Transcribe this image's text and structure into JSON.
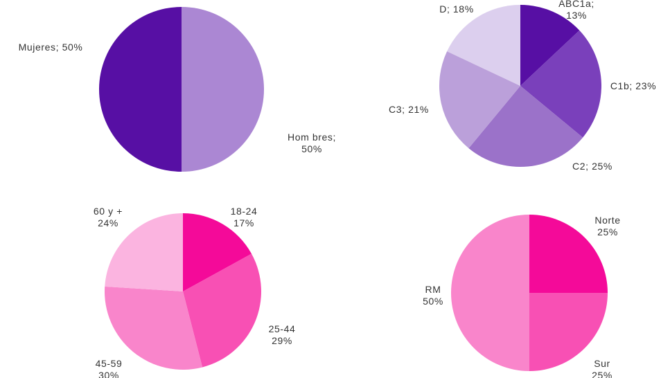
{
  "chart_data": [
    {
      "type": "pie",
      "slices": [
        {
          "label": "Hombres",
          "value": 50,
          "display": [
            "Hom bres;",
            "50%"
          ],
          "color": "#ab87d3"
        },
        {
          "label": "Mujeres",
          "value": 50,
          "display": [
            "Mujeres; 50%"
          ],
          "color": "#570fa4"
        }
      ]
    },
    {
      "type": "pie",
      "slices": [
        {
          "label": "ABC1a",
          "value": 13,
          "display": [
            "ABC1a;",
            "13%"
          ],
          "color": "#570fa4"
        },
        {
          "label": "C1b",
          "value": 23,
          "display": [
            "C1b; 23%"
          ],
          "color": "#7a40bb"
        },
        {
          "label": "C2",
          "value": 25,
          "display": [
            "C2; 25%"
          ],
          "color": "#9b72c9"
        },
        {
          "label": "C3",
          "value": 21,
          "display": [
            "C3; 21%"
          ],
          "color": "#bba0da"
        },
        {
          "label": "D",
          "value": 18,
          "display": [
            "D; 18%"
          ],
          "color": "#dccfee"
        }
      ]
    },
    {
      "type": "pie",
      "slices": [
        {
          "label": "18-24",
          "value": 17,
          "display": [
            "18-24",
            "17%"
          ],
          "color": "#f40a99"
        },
        {
          "label": "25-44",
          "value": 29,
          "display": [
            "25-44",
            "29%"
          ],
          "color": "#f850b4"
        },
        {
          "label": "45-59",
          "value": 30,
          "display": [
            "45-59",
            "30%"
          ],
          "color": "#f985cb"
        },
        {
          "label": "60 y +",
          "value": 24,
          "display": [
            "60 y +",
            "24%"
          ],
          "color": "#fbb4e0"
        }
      ]
    },
    {
      "type": "pie",
      "slices": [
        {
          "label": "Norte",
          "value": 25,
          "display": [
            "Norte",
            "25%"
          ],
          "color": "#f40a99"
        },
        {
          "label": "Sur",
          "value": 25,
          "display": [
            "Sur",
            "25%"
          ],
          "color": "#f850b4"
        },
        {
          "label": "RM",
          "value": 50,
          "display": [
            "RM",
            "50%"
          ],
          "color": "#f985cb"
        }
      ]
    }
  ]
}
